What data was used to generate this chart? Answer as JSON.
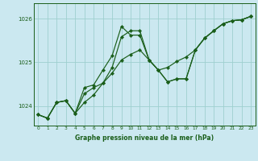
{
  "title": "Graphe pression niveau de la mer (hPa)",
  "bg_color": "#cbe8f0",
  "line_color": "#1a5e1a",
  "grid_color": "#9ecfcf",
  "axis_label_color": "#1a5e1a",
  "xlim": [
    -0.5,
    23.5
  ],
  "ylim": [
    1023.55,
    1026.35
  ],
  "yticks": [
    1024,
    1025,
    1026
  ],
  "xticks": [
    0,
    1,
    2,
    3,
    4,
    5,
    6,
    7,
    8,
    9,
    10,
    11,
    12,
    13,
    14,
    15,
    16,
    17,
    18,
    19,
    20,
    21,
    22,
    23
  ],
  "s1_x": [
    0,
    1,
    2,
    3,
    4,
    5,
    6,
    7,
    8,
    9,
    10,
    11,
    12,
    13,
    14,
    15,
    16,
    17,
    18,
    19,
    20,
    21,
    22,
    23
  ],
  "s1_y": [
    1023.8,
    1023.72,
    1024.08,
    1024.12,
    1023.83,
    1024.28,
    1024.42,
    1024.52,
    1024.75,
    1025.05,
    1025.18,
    1025.28,
    1025.05,
    1024.82,
    1024.88,
    1025.02,
    1025.12,
    1025.28,
    1025.55,
    1025.72,
    1025.88,
    1025.95,
    1025.97,
    1026.05
  ],
  "s2_x": [
    0,
    1,
    2,
    3,
    4,
    5,
    6,
    7,
    8,
    9,
    10,
    11,
    12,
    13,
    14,
    15,
    16,
    17,
    18,
    19,
    20,
    21,
    22,
    23
  ],
  "s2_y": [
    1023.8,
    1023.72,
    1024.08,
    1024.12,
    1023.83,
    1024.08,
    1024.25,
    1024.52,
    1024.88,
    1025.58,
    1025.72,
    1025.72,
    1025.05,
    1024.82,
    1024.55,
    1024.62,
    1024.62,
    1025.28,
    1025.55,
    1025.72,
    1025.88,
    1025.95,
    1025.97,
    1026.05
  ],
  "s3_x": [
    0,
    1,
    2,
    3,
    4,
    5,
    6,
    7,
    8,
    9,
    10,
    11,
    12,
    13,
    14,
    15,
    16,
    17,
    18,
    19,
    20,
    21,
    22,
    23
  ],
  "s3_y": [
    1023.8,
    1023.72,
    1024.08,
    1024.12,
    1023.83,
    1024.42,
    1024.48,
    1024.82,
    1025.15,
    1025.82,
    1025.62,
    1025.62,
    1025.05,
    1024.82,
    1024.55,
    1024.62,
    1024.62,
    1025.28,
    1025.55,
    1025.72,
    1025.88,
    1025.95,
    1025.97,
    1026.05
  ],
  "marker": "D",
  "markersize": 2.2,
  "linewidth": 0.85
}
